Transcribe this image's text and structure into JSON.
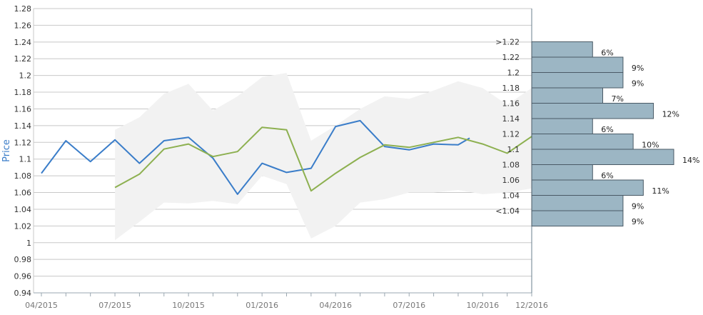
{
  "chart_data": {
    "type": "line",
    "ylabel": "Price",
    "ylim": [
      0.94,
      1.28
    ],
    "yticks": [
      "0.94",
      "0.96",
      "0.98",
      "1",
      "1.02",
      "1.04",
      "1.06",
      "1.08",
      "1.1",
      "1.12",
      "1.14",
      "1.16",
      "1.18",
      "1.2",
      "1.22",
      "1.24",
      "1.26",
      "1.28"
    ],
    "xlim": [
      "2015-04",
      "2016-12"
    ],
    "xticks": [
      "04/2015",
      "07/2015",
      "10/2015",
      "01/2016",
      "04/2016",
      "07/2016",
      "10/2016",
      "12/2016"
    ],
    "grid": true,
    "series": [
      {
        "role": "historical",
        "color": "#3a7dc9",
        "x": [
          "2015-04",
          "2015-05",
          "2015-06",
          "2015-07",
          "2015-08",
          "2015-09",
          "2015-10",
          "2015-11",
          "2015-12",
          "2016-01",
          "2016-02",
          "2016-03",
          "2016-04",
          "2016-05",
          "2016-06",
          "2016-07",
          "2016-08",
          "2016-09",
          "2016-09-15"
        ],
        "y": [
          1.083,
          1.122,
          1.097,
          1.123,
          1.095,
          1.122,
          1.126,
          1.101,
          1.058,
          1.095,
          1.084,
          1.089,
          1.139,
          1.146,
          1.115,
          1.111,
          1.118,
          1.117,
          1.125
        ]
      },
      {
        "role": "forecast",
        "color": "#8db050",
        "x": [
          "2015-07",
          "2015-08",
          "2015-09",
          "2015-10",
          "2015-11",
          "2015-12",
          "2016-01",
          "2016-02",
          "2016-03",
          "2016-04",
          "2016-05",
          "2016-06",
          "2016-07",
          "2016-08",
          "2016-09",
          "2016-10",
          "2016-11",
          "2016-12"
        ],
        "y": [
          1.066,
          1.082,
          1.112,
          1.118,
          1.103,
          1.109,
          1.138,
          1.135,
          1.062,
          1.083,
          1.102,
          1.117,
          1.114,
          1.12,
          1.126,
          1.118,
          1.107,
          1.127
        ]
      }
    ],
    "range_band": {
      "color": "#f2f2f2",
      "x": [
        "2015-07",
        "2015-08",
        "2015-09",
        "2015-10",
        "2015-11",
        "2015-12",
        "2016-01",
        "2016-02",
        "2016-03",
        "2016-04",
        "2016-05",
        "2016-06",
        "2016-07",
        "2016-08",
        "2016-09",
        "2016-10",
        "2016-11",
        "2016-12"
      ],
      "upper": [
        1.135,
        1.15,
        1.178,
        1.19,
        1.158,
        1.175,
        1.198,
        1.203,
        1.122,
        1.14,
        1.16,
        1.175,
        1.172,
        1.182,
        1.193,
        1.185,
        1.165,
        1.185
      ],
      "lower": [
        1.003,
        1.025,
        1.048,
        1.047,
        1.05,
        1.046,
        1.08,
        1.07,
        1.005,
        1.02,
        1.048,
        1.052,
        1.06,
        1.06,
        1.063,
        1.058,
        1.06,
        1.065
      ]
    },
    "distribution": {
      "color": "#9cb6c4",
      "border": "#4a5a66",
      "bins": [
        {
          "label": ">1.22",
          "pct": "6%",
          "value": 6
        },
        {
          "label": "1.22",
          "pct": "9%",
          "value": 9
        },
        {
          "label": "1.2",
          "pct": "9%",
          "value": 9
        },
        {
          "label": "1.18",
          "pct": "7%",
          "value": 7
        },
        {
          "label": "1.16",
          "pct": "12%",
          "value": 12
        },
        {
          "label": "1.14",
          "pct": "6%",
          "value": 6
        },
        {
          "label": "1.12",
          "pct": "10%",
          "value": 10
        },
        {
          "label": "1.1",
          "pct": "14%",
          "value": 14
        },
        {
          "label": "1.08",
          "pct": "6%",
          "value": 6
        },
        {
          "label": "1.06",
          "pct": "11%",
          "value": 11
        },
        {
          "label": "1.04",
          "pct": "9%",
          "value": 9
        },
        {
          "label": "<1.04",
          "pct": "9%",
          "value": 9
        }
      ]
    }
  }
}
